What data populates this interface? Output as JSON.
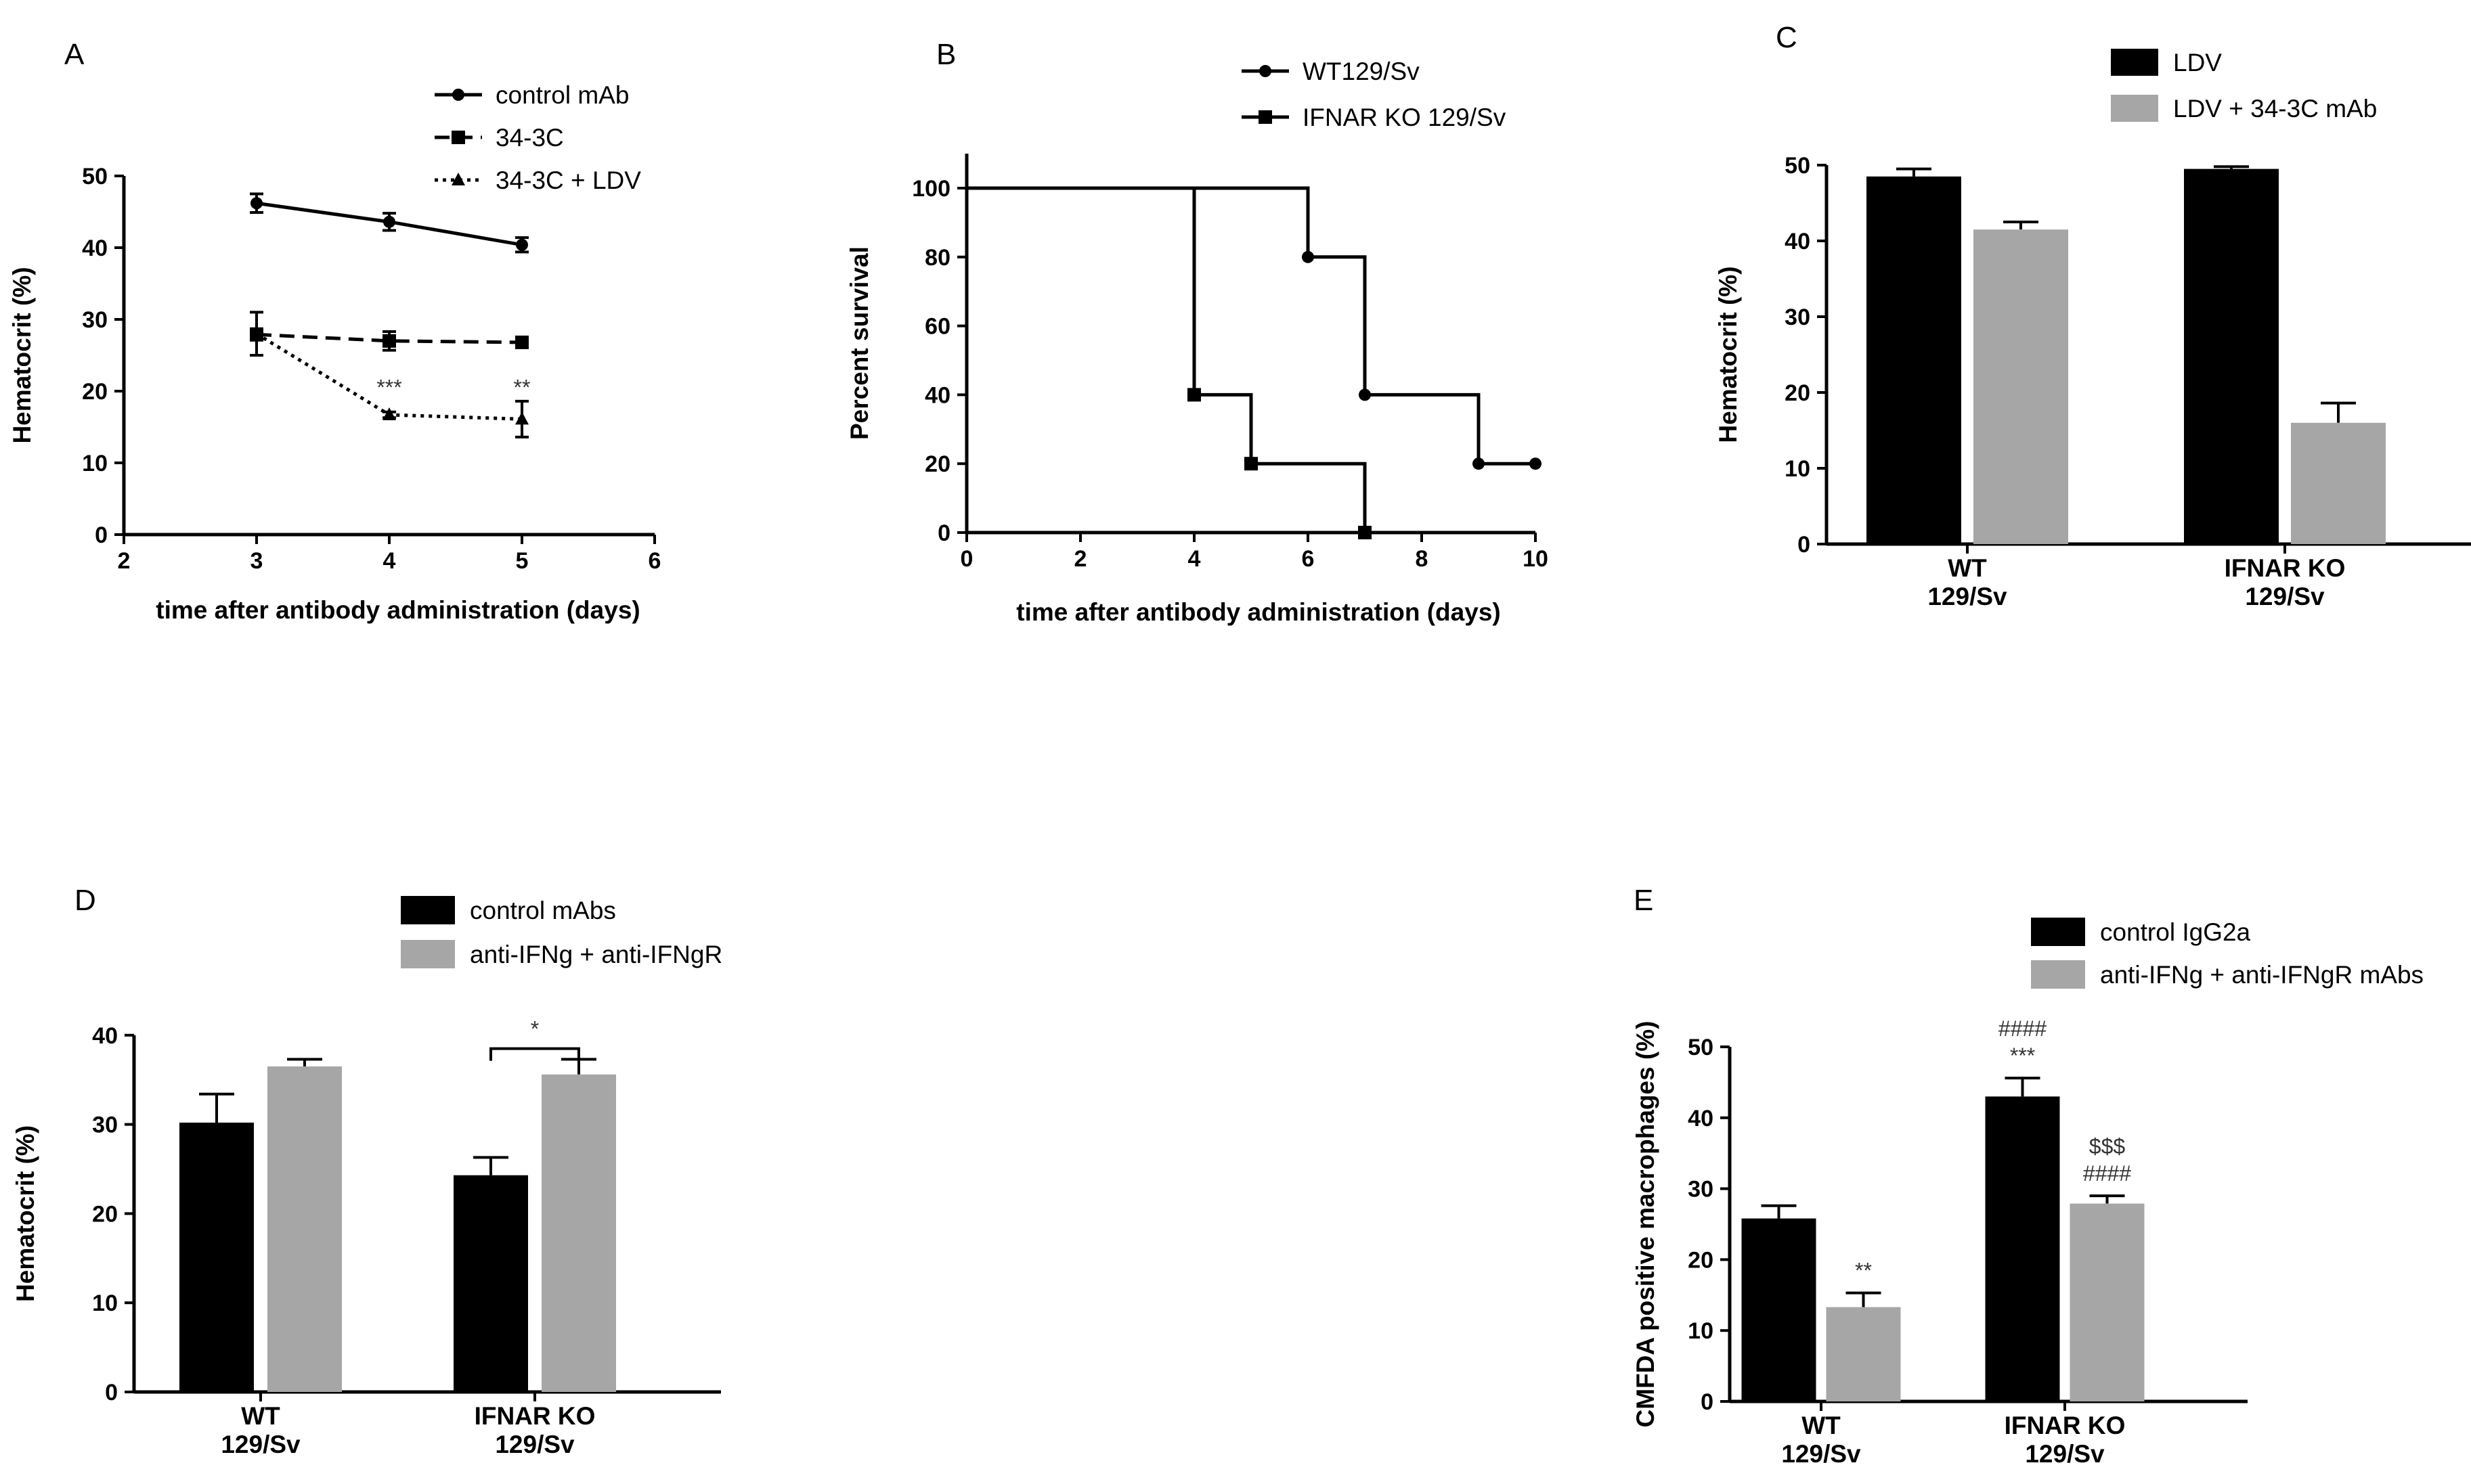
{
  "chart_data": [
    {
      "panel": "A",
      "type": "line",
      "xlabel": "time after antibody administration (days)",
      "ylabel": "Hematocrit (%)",
      "xlim": [
        2,
        6
      ],
      "ylim": [
        0,
        50
      ],
      "xticks": [
        2,
        3,
        4,
        5,
        6
      ],
      "yticks": [
        0,
        10,
        20,
        30,
        40,
        50
      ],
      "grid": false,
      "legend_position": "top-right",
      "series": [
        {
          "name": "control mAb",
          "marker": "circle",
          "line": "solid",
          "x": [
            3,
            4,
            5
          ],
          "y": [
            46.2,
            43.6,
            40.4
          ],
          "err": [
            1.3,
            1.2,
            1.0
          ]
        },
        {
          "name": "34-3C",
          "marker": "square",
          "line": "dashed",
          "x": [
            3,
            4,
            5
          ],
          "y": [
            27.9,
            27.0,
            26.8
          ],
          "err": [
            0.8,
            1.3,
            0.5
          ]
        },
        {
          "name": "34-3C + LDV",
          "marker": "triangle",
          "line": "dotted",
          "x": [
            3,
            4,
            5
          ],
          "y": [
            28.0,
            16.7,
            16.1
          ],
          "err": [
            3.0,
            0.4,
            2.5
          ]
        }
      ],
      "annotations": [
        {
          "text": "***",
          "x": 4,
          "y": 19.5
        },
        {
          "text": "**",
          "x": 5,
          "y": 19.5
        }
      ]
    },
    {
      "panel": "B",
      "type": "line",
      "subtype": "step",
      "xlabel": "time after antibody administration (days)",
      "ylabel": "Percent survival",
      "xlim": [
        0,
        10
      ],
      "ylim": [
        0,
        110
      ],
      "xticks": [
        0,
        2,
        4,
        6,
        8,
        10
      ],
      "yticks": [
        0,
        20,
        40,
        60,
        80,
        100
      ],
      "grid": false,
      "legend_position": "top-right",
      "series": [
        {
          "name": "WT129/Sv",
          "marker": "circle",
          "x": [
            0,
            6,
            7,
            9,
            10
          ],
          "y": [
            100,
            80,
            40,
            20,
            20
          ],
          "markers_at": [
            6,
            7,
            9,
            10
          ]
        },
        {
          "name": "IFNAR KO 129/Sv",
          "marker": "square",
          "x": [
            0,
            4,
            5,
            7
          ],
          "y": [
            100,
            40,
            20,
            0
          ],
          "markers_at": [
            4,
            5,
            7
          ]
        }
      ]
    },
    {
      "panel": "C",
      "type": "bar",
      "ylabel": "Hematocrit (%)",
      "ylim": [
        0,
        50
      ],
      "yticks": [
        0,
        10,
        20,
        30,
        40,
        50
      ],
      "categories": [
        "WT|129/Sv",
        "IFNAR KO|129/Sv"
      ],
      "legend_position": "top-right",
      "series": [
        {
          "name": "LDV",
          "color": "#000000",
          "values": [
            48.5,
            49.5
          ],
          "err": [
            1.0,
            0.3
          ]
        },
        {
          "name": "LDV + 34-3C mAb",
          "color": "#a6a6a7",
          "values": [
            41.5,
            16.0
          ],
          "err": [
            1.0,
            2.6
          ]
        }
      ]
    },
    {
      "panel": "D",
      "type": "bar",
      "ylabel": "Hematocrit (%)",
      "ylim": [
        0,
        40
      ],
      "yticks": [
        0,
        10,
        20,
        30,
        40
      ],
      "categories": [
        "WT|129/Sv",
        "IFNAR KO|129/Sv"
      ],
      "legend_position": "top-right",
      "series": [
        {
          "name": "control mAbs",
          "color": "#000000",
          "values": [
            30.2,
            24.3
          ],
          "err": [
            3.2,
            2.0
          ]
        },
        {
          "name": "anti-IFNg + anti-IFNgR",
          "color": "#a6a6a7",
          "values": [
            36.5,
            35.6
          ],
          "err": [
            0.8,
            1.7
          ]
        }
      ],
      "annotations": [
        {
          "text": "*",
          "bracket": [
            1,
            0,
            1,
            1
          ],
          "y": 38.5
        }
      ]
    },
    {
      "panel": "E",
      "type": "bar",
      "ylabel": "CMFDA positive macrophages (%)",
      "ylim": [
        0,
        50
      ],
      "yticks": [
        0,
        10,
        20,
        30,
        40,
        50
      ],
      "categories": [
        "WT|129/Sv",
        "IFNAR KO|129/Sv"
      ],
      "legend_position": "top-right",
      "series": [
        {
          "name": "control IgG2a",
          "color": "#000000",
          "values": [
            25.8,
            43.0
          ],
          "err": [
            1.8,
            2.6
          ]
        },
        {
          "name": "anti-IFNg + anti-IFNgR mAbs",
          "color": "#a6a6a7",
          "values": [
            13.3,
            27.9
          ],
          "err": [
            2.0,
            1.1
          ]
        }
      ],
      "annotations": [
        {
          "text": "**",
          "category": 0,
          "series": 1
        },
        {
          "text": "***",
          "category": 1,
          "series": 0
        },
        {
          "text": "####",
          "category": 1,
          "series": 0
        },
        {
          "text": "####",
          "category": 1,
          "series": 1
        },
        {
          "text": "$$$",
          "category": 1,
          "series": 1
        }
      ]
    }
  ]
}
